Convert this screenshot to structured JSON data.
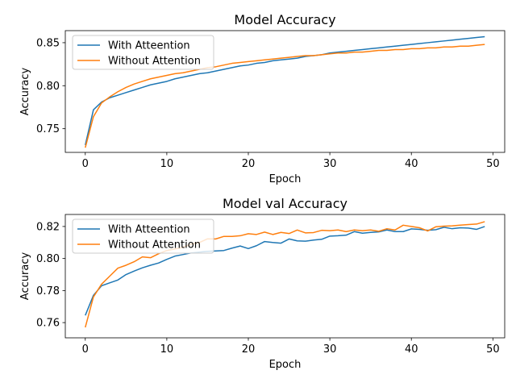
{
  "chart_data": [
    {
      "type": "line",
      "title": "Model Accuracy",
      "xlabel": "Epoch",
      "ylabel": "Accuracy",
      "xlim": [
        -2.45,
        51.45
      ],
      "ylim": [
        0.7225,
        0.864
      ],
      "xticks": [
        0,
        10,
        20,
        30,
        40,
        50
      ],
      "yticks": [
        0.75,
        0.8,
        0.85
      ],
      "ytick_labels": [
        "0.75",
        "0.80",
        "0.85"
      ],
      "legend": "top-left",
      "grid": false,
      "x": [
        0,
        1,
        2,
        3,
        4,
        5,
        6,
        7,
        8,
        9,
        10,
        11,
        12,
        13,
        14,
        15,
        16,
        17,
        18,
        19,
        20,
        21,
        22,
        23,
        24,
        25,
        26,
        27,
        28,
        29,
        30,
        31,
        32,
        33,
        34,
        35,
        36,
        37,
        38,
        39,
        40,
        41,
        42,
        43,
        44,
        45,
        46,
        47,
        48,
        49
      ],
      "series": [
        {
          "name": "With Atteention",
          "color": "#1f77b4",
          "values": [
            0.731,
            0.772,
            0.781,
            0.786,
            0.789,
            0.792,
            0.795,
            0.798,
            0.801,
            0.803,
            0.805,
            0.808,
            0.81,
            0.812,
            0.814,
            0.815,
            0.817,
            0.819,
            0.821,
            0.823,
            0.824,
            0.826,
            0.827,
            0.829,
            0.83,
            0.831,
            0.832,
            0.834,
            0.835,
            0.836,
            0.838,
            0.839,
            0.84,
            0.841,
            0.842,
            0.843,
            0.844,
            0.845,
            0.846,
            0.847,
            0.848,
            0.849,
            0.85,
            0.851,
            0.852,
            0.853,
            0.854,
            0.855,
            0.856,
            0.857
          ]
        },
        {
          "name": "Without Attention",
          "color": "#ff7f0e",
          "values": [
            0.728,
            0.764,
            0.78,
            0.787,
            0.793,
            0.798,
            0.802,
            0.805,
            0.808,
            0.81,
            0.812,
            0.814,
            0.815,
            0.817,
            0.819,
            0.821,
            0.822,
            0.824,
            0.826,
            0.827,
            0.828,
            0.829,
            0.83,
            0.831,
            0.832,
            0.833,
            0.834,
            0.835,
            0.835,
            0.836,
            0.837,
            0.838,
            0.838,
            0.839,
            0.839,
            0.84,
            0.841,
            0.841,
            0.842,
            0.842,
            0.843,
            0.843,
            0.844,
            0.844,
            0.845,
            0.845,
            0.846,
            0.846,
            0.847,
            0.848
          ]
        }
      ]
    },
    {
      "type": "line",
      "title": "Model val Accuracy",
      "xlabel": "Epoch",
      "ylabel": "Accuracy",
      "xlim": [
        -2.45,
        51.45
      ],
      "ylim": [
        0.7505,
        0.8275
      ],
      "xticks": [
        0,
        10,
        20,
        30,
        40,
        50
      ],
      "yticks": [
        0.76,
        0.78,
        0.8,
        0.82
      ],
      "ytick_labels": [
        "0.76",
        "0.78",
        "0.80",
        "0.82"
      ],
      "legend": "top-left",
      "grid": false,
      "x": [
        0,
        1,
        2,
        3,
        4,
        5,
        6,
        7,
        8,
        9,
        10,
        11,
        12,
        13,
        14,
        15,
        16,
        17,
        18,
        19,
        20,
        21,
        22,
        23,
        24,
        25,
        26,
        27,
        28,
        29,
        30,
        31,
        32,
        33,
        34,
        35,
        36,
        37,
        38,
        39,
        40,
        41,
        42,
        43,
        44,
        45,
        46,
        47,
        48,
        49
      ],
      "series": [
        {
          "name": "With Atteention",
          "color": "#1f77b4",
          "values": [
            0.7645,
            0.777,
            0.783,
            0.7848,
            0.7866,
            0.79,
            0.7922,
            0.7942,
            0.7958,
            0.7972,
            0.7995,
            0.8015,
            0.8025,
            0.8035,
            0.804,
            0.8045,
            0.8047,
            0.805,
            0.8065,
            0.8078,
            0.8062,
            0.808,
            0.8106,
            0.81,
            0.8096,
            0.8122,
            0.811,
            0.8108,
            0.8115,
            0.812,
            0.814,
            0.8142,
            0.8146,
            0.8168,
            0.8158,
            0.8163,
            0.8166,
            0.8178,
            0.8168,
            0.8168,
            0.8185,
            0.8182,
            0.8176,
            0.818,
            0.8195,
            0.8186,
            0.8192,
            0.819,
            0.8182,
            0.82
          ]
        },
        {
          "name": "Without Attention",
          "color": "#ff7f0e",
          "values": [
            0.757,
            0.776,
            0.784,
            0.789,
            0.794,
            0.7958,
            0.798,
            0.801,
            0.8005,
            0.803,
            0.805,
            0.806,
            0.807,
            0.809,
            0.81,
            0.8123,
            0.8122,
            0.8138,
            0.8138,
            0.8142,
            0.8155,
            0.815,
            0.8165,
            0.815,
            0.8163,
            0.8156,
            0.8178,
            0.816,
            0.8162,
            0.8176,
            0.8174,
            0.8178,
            0.8168,
            0.8178,
            0.8174,
            0.8178,
            0.817,
            0.8186,
            0.8178,
            0.8208,
            0.82,
            0.8192,
            0.8172,
            0.8198,
            0.8202,
            0.8204,
            0.8208,
            0.8212,
            0.8215,
            0.823
          ]
        }
      ]
    }
  ]
}
